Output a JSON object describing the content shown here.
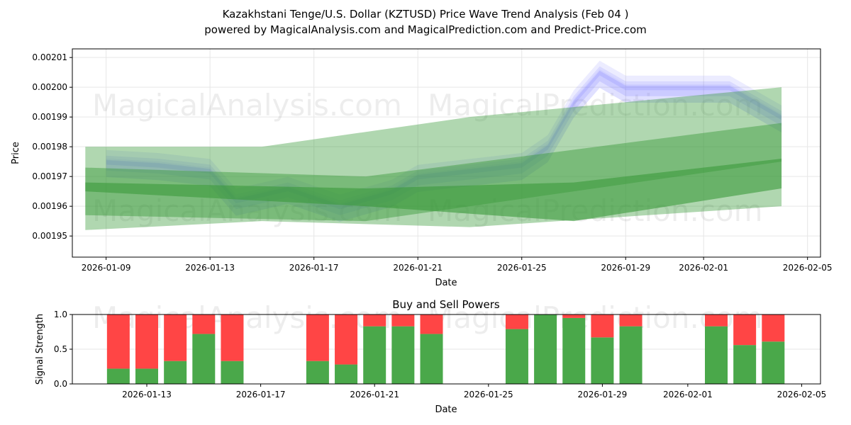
{
  "title_line1": "Kazakhstani Tenge/U.S. Dollar (KZTUSD) Price Wave Trend Analysis (Feb 04 )",
  "title_line2": "powered by MagicalAnalysis.com and MagicalPrediction.com and Predict-Price.com",
  "watermarks": [
    "MagicalAnalysis.com",
    "MagicalPrediction.com"
  ],
  "colors": {
    "buy": "#4aa84a",
    "sell": "#ff4545",
    "wave": "#6e6eff",
    "trend": "#3a9a3a"
  },
  "chart_data": [
    {
      "type": "area",
      "title": "",
      "xlabel": "Date",
      "ylabel": "Price",
      "ylim": [
        0.0019429,
        0.0020129
      ],
      "xlim_days_from_2026_01_09": [
        -1.3,
        27.5
      ],
      "yticks": [
        "0.00195",
        "0.00196",
        "0.00197",
        "0.00198",
        "0.00199",
        "0.00200",
        "0.00201"
      ],
      "ytick_values": [
        0.00195,
        0.00196,
        0.00197,
        0.00198,
        0.00199,
        0.002,
        0.00201
      ],
      "xticks": [
        "2026-01-09",
        "2026-01-13",
        "2026-01-17",
        "2026-01-21",
        "2026-01-25",
        "2026-01-29",
        "2026-02-01",
        "2026-02-05"
      ],
      "xtick_days": [
        0,
        4,
        8,
        12,
        16,
        20,
        23,
        27
      ],
      "grid": true,
      "trend_bands": [
        {
          "x": [
            -0.8,
            6,
            14,
            26
          ],
          "upper": [
            0.00198,
            0.00198,
            0.00199,
            0.002
          ],
          "lower": [
            0.001952,
            0.001955,
            0.001953,
            0.00196
          ]
        },
        {
          "x": [
            -0.8,
            10,
            26
          ],
          "upper": [
            0.001973,
            0.00197,
            0.001988
          ],
          "lower": [
            0.001957,
            0.001955,
            0.001975
          ]
        },
        {
          "x": [
            -0.8,
            10,
            18,
            26
          ],
          "upper": [
            0.001968,
            0.001966,
            0.001968,
            0.001976
          ],
          "lower": [
            0.001965,
            0.00196,
            0.001955,
            0.001966
          ]
        }
      ],
      "wave_line": {
        "x": [
          0,
          2,
          4,
          5,
          7,
          9,
          11,
          12,
          14,
          16,
          17,
          18,
          19,
          20,
          22,
          24,
          25,
          26
        ],
        "y": [
          0.001975,
          0.001974,
          0.001972,
          0.001962,
          0.001966,
          0.00196,
          0.001965,
          0.00197,
          0.001972,
          0.001974,
          0.00198,
          0.001995,
          0.002005,
          0.002,
          0.002,
          0.002,
          0.001995,
          0.00199
        ]
      }
    },
    {
      "type": "bar",
      "title": "Buy and Sell Powers",
      "xlabel": "Date",
      "ylabel": "Signal Strength",
      "ylim": [
        0,
        1
      ],
      "yticks": [
        "0.0",
        "0.5",
        "1.0"
      ],
      "xticks": [
        "2026-01-13",
        "2026-01-17",
        "2026-01-21",
        "2026-01-25",
        "2026-01-29",
        "2026-02-01",
        "2026-02-05"
      ],
      "categories": [
        "2026-01-12",
        "2026-01-13",
        "2026-01-14",
        "2026-01-15",
        "2026-01-16",
        "2026-01-19",
        "2026-01-20",
        "2026-01-21",
        "2026-01-22",
        "2026-01-23",
        "2026-01-26",
        "2026-01-27",
        "2026-01-28",
        "2026-01-29",
        "2026-01-30",
        "2026-02-02",
        "2026-02-03",
        "2026-02-04"
      ],
      "series": [
        {
          "name": "Buy",
          "values": [
            0.22,
            0.22,
            0.33,
            0.72,
            0.33,
            0.33,
            0.28,
            0.83,
            0.83,
            0.72,
            0.79,
            1.0,
            0.95,
            0.67,
            0.83,
            0.83,
            0.56,
            0.61
          ]
        },
        {
          "name": "Sell",
          "values": [
            0.78,
            0.78,
            0.67,
            0.28,
            0.67,
            0.67,
            0.72,
            0.17,
            0.17,
            0.28,
            0.21,
            0.0,
            0.05,
            0.33,
            0.17,
            0.17,
            0.44,
            0.39
          ]
        }
      ]
    }
  ]
}
